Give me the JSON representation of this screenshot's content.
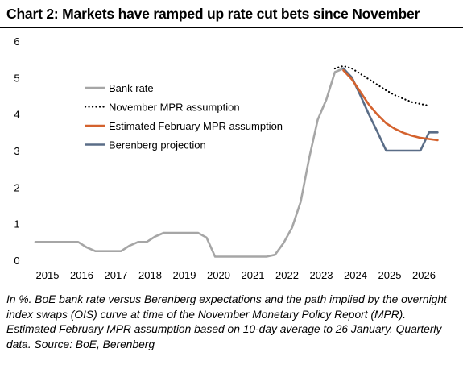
{
  "title": "Chart 2: Markets have ramped up rate cut bets since November",
  "note": "In %. BoE bank rate versus Berenberg expectations and the path implied by the overnight index swaps (OIS) curve at time of the November Monetary Policy Report (MPR). Estimated February MPR assumption based on 10-day average to 26 January. Quarterly data. Source: BoE, Berenberg",
  "chart_data": {
    "type": "line",
    "title": "Chart 2: Markets have ramped up rate cut bets since November",
    "xlabel": "",
    "ylabel": "",
    "xlim": [
      2015,
      2027
    ],
    "ylim": [
      0,
      6
    ],
    "x_ticks": [
      "2015",
      "2016",
      "2017",
      "2018",
      "2019",
      "2020",
      "2021",
      "2022",
      "2023",
      "2024",
      "2025",
      "2026"
    ],
    "y_ticks": [
      "0",
      "1",
      "2",
      "3",
      "4",
      "5",
      "6"
    ],
    "grid": false,
    "legend_position": "upper-left",
    "series": [
      {
        "name": "Bank rate",
        "color": "#a6a6a6",
        "style": "solid",
        "points": [
          [
            2015.0,
            0.5
          ],
          [
            2015.25,
            0.5
          ],
          [
            2015.5,
            0.5
          ],
          [
            2015.75,
            0.5
          ],
          [
            2016.0,
            0.5
          ],
          [
            2016.25,
            0.5
          ],
          [
            2016.5,
            0.35
          ],
          [
            2016.75,
            0.25
          ],
          [
            2017.0,
            0.25
          ],
          [
            2017.25,
            0.25
          ],
          [
            2017.5,
            0.25
          ],
          [
            2017.75,
            0.4
          ],
          [
            2018.0,
            0.5
          ],
          [
            2018.25,
            0.5
          ],
          [
            2018.5,
            0.65
          ],
          [
            2018.75,
            0.75
          ],
          [
            2019.0,
            0.75
          ],
          [
            2019.25,
            0.75
          ],
          [
            2019.5,
            0.75
          ],
          [
            2019.75,
            0.75
          ],
          [
            2020.0,
            0.62
          ],
          [
            2020.25,
            0.1
          ],
          [
            2020.5,
            0.1
          ],
          [
            2020.75,
            0.1
          ],
          [
            2021.0,
            0.1
          ],
          [
            2021.25,
            0.1
          ],
          [
            2021.5,
            0.1
          ],
          [
            2021.75,
            0.1
          ],
          [
            2022.0,
            0.15
          ],
          [
            2022.25,
            0.47
          ],
          [
            2022.5,
            0.9
          ],
          [
            2022.75,
            1.6
          ],
          [
            2023.0,
            2.8
          ],
          [
            2023.25,
            3.85
          ],
          [
            2023.5,
            4.4
          ],
          [
            2023.75,
            5.15
          ],
          [
            2024.0,
            5.25
          ]
        ]
      },
      {
        "name": "November MPR assumption",
        "color": "#000000",
        "style": "dotted",
        "points": [
          [
            2023.75,
            5.25
          ],
          [
            2024.0,
            5.32
          ],
          [
            2024.25,
            5.25
          ],
          [
            2024.5,
            5.1
          ],
          [
            2024.75,
            4.95
          ],
          [
            2025.0,
            4.8
          ],
          [
            2025.25,
            4.65
          ],
          [
            2025.5,
            4.52
          ],
          [
            2025.75,
            4.42
          ],
          [
            2026.0,
            4.33
          ],
          [
            2026.25,
            4.28
          ],
          [
            2026.5,
            4.23
          ]
        ]
      },
      {
        "name": "Estimated February MPR assumption",
        "color": "#d4622e",
        "style": "solid",
        "points": [
          [
            2024.0,
            5.2
          ],
          [
            2024.25,
            4.95
          ],
          [
            2024.5,
            4.6
          ],
          [
            2024.75,
            4.25
          ],
          [
            2025.0,
            3.98
          ],
          [
            2025.25,
            3.75
          ],
          [
            2025.5,
            3.6
          ],
          [
            2025.75,
            3.49
          ],
          [
            2026.0,
            3.41
          ],
          [
            2026.25,
            3.35
          ],
          [
            2026.5,
            3.32
          ],
          [
            2026.75,
            3.29
          ]
        ]
      },
      {
        "name": "Berenberg projection",
        "color": "#5a6d87",
        "style": "solid",
        "points": [
          [
            2024.0,
            5.25
          ],
          [
            2024.25,
            5.0
          ],
          [
            2024.5,
            4.5
          ],
          [
            2024.75,
            3.98
          ],
          [
            2025.0,
            3.5
          ],
          [
            2025.25,
            3.0
          ],
          [
            2025.5,
            3.0
          ],
          [
            2025.75,
            3.0
          ],
          [
            2026.0,
            3.0
          ],
          [
            2026.25,
            3.0
          ],
          [
            2026.5,
            3.5
          ],
          [
            2026.75,
            3.5
          ]
        ]
      }
    ]
  }
}
